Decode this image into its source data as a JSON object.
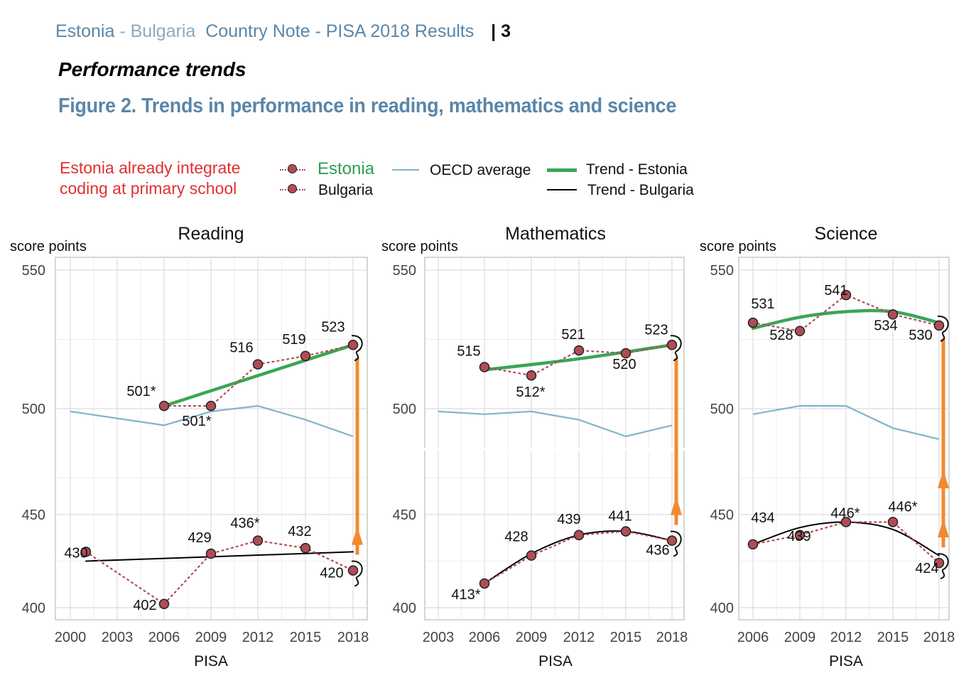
{
  "header": {
    "country_a": "Estonia",
    "separator": " - ",
    "country_b": "Bulgaria",
    "note_title": "Country Note - PISA 2018 Results",
    "page_sep": "|",
    "page": "3"
  },
  "section_title": "Performance trends",
  "figure_title": "Figure 2. Trends in performance in reading, mathematics and science",
  "annotation": {
    "line1": "Estonia already integrate",
    "line2": "coding at primary school"
  },
  "legend": {
    "estonia": "Estonia",
    "bulgaria": "Bulgaria",
    "oecd": "OECD average",
    "trend_estonia": "Trend - Estonia",
    "trend_bulgaria": "Trend - Bulgaria"
  },
  "colors": {
    "point_fill": "#b04c55",
    "oecd_line": "#7fb5c9",
    "trend_estonia": "#3aa655",
    "trend_bulgaria": "#000000",
    "gap_arrow": "#f28a30",
    "annotation_text": "#e03030",
    "header_text": "#5b86a8"
  },
  "chart_data": [
    {
      "type": "line",
      "title": "Reading",
      "ylabel": "score points",
      "xlabel": "PISA",
      "x_ticks": [
        "2000",
        "2003",
        "2006",
        "2009",
        "2012",
        "2015",
        "2018"
      ],
      "x_domain": [
        2000,
        2018
      ],
      "y_ticks": [
        "400",
        "450",
        "500",
        "550"
      ],
      "ylim_upper": [
        490,
        553
      ],
      "ylim_lower": [
        397,
        460
      ],
      "axis_break": false,
      "series": [
        {
          "name": "Estonia",
          "x": [
            2006,
            2009,
            2012,
            2015,
            2018
          ],
          "values": [
            501,
            501,
            516,
            519,
            523
          ],
          "labels": [
            "501*",
            "501*",
            "516",
            "519",
            "523"
          ]
        },
        {
          "name": "Bulgaria",
          "x": [
            2001,
            2006,
            2009,
            2012,
            2015,
            2018
          ],
          "values": [
            430,
            402,
            429,
            436,
            432,
            420
          ],
          "labels": [
            "430",
            "402",
            "429",
            "436*",
            "432",
            "420"
          ]
        },
        {
          "name": "OECD average",
          "x": [
            2000,
            2006,
            2009,
            2012,
            2015,
            2018
          ],
          "values": [
            499,
            494,
            499,
            501,
            496,
            490
          ]
        },
        {
          "name": "Trend - Estonia",
          "x": [
            2006,
            2018
          ],
          "values": [
            501,
            523
          ]
        },
        {
          "name": "Trend - Bulgaria",
          "x": [
            2001,
            2018
          ],
          "values": [
            425,
            430
          ]
        }
      ],
      "gap_arrow": {
        "x": 2018,
        "from": 420,
        "to": 523
      }
    },
    {
      "type": "line",
      "title": "Mathematics",
      "ylabel": "score points",
      "xlabel": "PISA",
      "x_ticks": [
        "2003",
        "2006",
        "2009",
        "2012",
        "2015",
        "2018"
      ],
      "x_domain": [
        2003,
        2018
      ],
      "y_ticks": [
        "400",
        "450",
        "500",
        "550"
      ],
      "ylim_upper": [
        485,
        553
      ],
      "ylim_lower": [
        398,
        460
      ],
      "axis_break": true,
      "series": [
        {
          "name": "Estonia",
          "x": [
            2006,
            2009,
            2012,
            2015,
            2018
          ],
          "values": [
            515,
            512,
            521,
            520,
            523
          ],
          "labels": [
            "515",
            "512*",
            "521",
            "520",
            "523"
          ]
        },
        {
          "name": "Bulgaria",
          "x": [
            2006,
            2009,
            2012,
            2015,
            2018
          ],
          "values": [
            413,
            428,
            439,
            441,
            436
          ],
          "labels": [
            "413*",
            "428",
            "439",
            "441",
            "436"
          ]
        },
        {
          "name": "OECD average",
          "x": [
            2003,
            2006,
            2009,
            2012,
            2015,
            2018
          ],
          "values": [
            499,
            498,
            499,
            496,
            490,
            494
          ]
        },
        {
          "name": "Trend - Estonia",
          "x": [
            2006,
            2012,
            2018
          ],
          "values": [
            514,
            518,
            523
          ]
        },
        {
          "name": "Trend - Bulgaria",
          "x": [
            2006,
            2009,
            2012,
            2015,
            2018
          ],
          "values": [
            413,
            429,
            439,
            441,
            436
          ]
        }
      ],
      "gap_arrow": {
        "x": 2018,
        "from": 436,
        "to": 523
      }
    },
    {
      "type": "line",
      "title": "Science",
      "ylabel": "score points",
      "xlabel": "PISA",
      "x_ticks": [
        "2006",
        "2009",
        "2012",
        "2015",
        "2018"
      ],
      "x_domain": [
        2006,
        2018
      ],
      "y_ticks": [
        "400",
        "450",
        "500",
        "550"
      ],
      "ylim_upper": [
        480,
        553
      ],
      "ylim_lower": [
        397,
        460
      ],
      "axis_break": false,
      "series": [
        {
          "name": "Estonia",
          "x": [
            2006,
            2009,
            2012,
            2015,
            2018
          ],
          "values": [
            531,
            528,
            541,
            534,
            530
          ],
          "labels": [
            "531",
            "528",
            "541",
            "534",
            "530"
          ]
        },
        {
          "name": "Bulgaria",
          "x": [
            2006,
            2009,
            2012,
            2015,
            2018
          ],
          "values": [
            434,
            439,
            446,
            446,
            424
          ],
          "labels": [
            "434",
            "439",
            "446*",
            "446*",
            "424"
          ]
        },
        {
          "name": "OECD average",
          "x": [
            2006,
            2009,
            2012,
            2015,
            2018
          ],
          "values": [
            498,
            501,
            501,
            493,
            489
          ]
        },
        {
          "name": "Trend - Estonia",
          "x": [
            2006,
            2009,
            2012,
            2015,
            2018
          ],
          "values": [
            529,
            533,
            535,
            535,
            531
          ]
        },
        {
          "name": "Trend - Bulgaria",
          "x": [
            2006,
            2009,
            2012,
            2015,
            2018
          ],
          "values": [
            434,
            443,
            446,
            442,
            428
          ]
        }
      ],
      "gap_arrow": {
        "x": 2018,
        "from": 424,
        "to": 530
      }
    }
  ]
}
